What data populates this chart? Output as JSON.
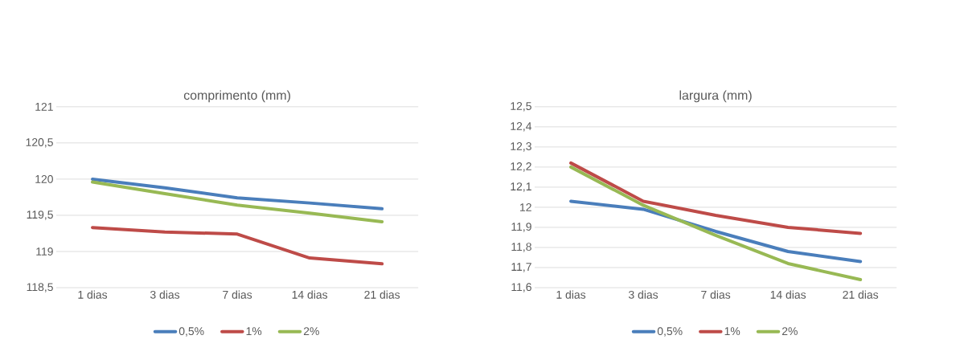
{
  "chart_data": [
    {
      "type": "line",
      "title": "comprimento (mm)",
      "categories": [
        "1 dias",
        "3 dias",
        "7 dias",
        "14 dias",
        "21 dias"
      ],
      "series": [
        {
          "name": "0,5%",
          "color": "#4a7ebb",
          "values": [
            120.0,
            119.88,
            119.74,
            119.67,
            119.59
          ]
        },
        {
          "name": "1%",
          "color": "#be4b48",
          "values": [
            119.33,
            119.27,
            119.24,
            118.91,
            118.83
          ]
        },
        {
          "name": "2%",
          "color": "#98b954",
          "values": [
            119.96,
            119.8,
            119.64,
            119.53,
            119.41
          ]
        }
      ],
      "ylim": [
        118.5,
        121
      ],
      "yticks": [
        {
          "value": 118.5,
          "label": "118,5"
        },
        119,
        {
          "value": 119.5,
          "label": "119,5"
        },
        120,
        {
          "value": 120.5,
          "label": "120,5"
        },
        121
      ],
      "grid": "y",
      "legend": "bottom",
      "marker": "none",
      "line_style": "solid"
    },
    {
      "type": "line",
      "title": "largura (mm)",
      "categories": [
        "1 dias",
        "3 dias",
        "7 dias",
        "14 dias",
        "21 dias"
      ],
      "series": [
        {
          "name": "0,5%",
          "color": "#4a7ebb",
          "values": [
            12.03,
            11.99,
            11.88,
            11.78,
            11.73
          ]
        },
        {
          "name": "1%",
          "color": "#be4b48",
          "values": [
            12.22,
            12.03,
            11.96,
            11.9,
            11.87
          ]
        },
        {
          "name": "2%",
          "color": "#98b954",
          "values": [
            12.2,
            12.01,
            11.86,
            11.72,
            11.64
          ]
        }
      ],
      "ylim": [
        11.6,
        12.5
      ],
      "yticks": [
        {
          "value": 11.6,
          "label": "11,6"
        },
        {
          "value": 11.7,
          "label": "11,7"
        },
        {
          "value": 11.8,
          "label": "11,8"
        },
        {
          "value": 11.9,
          "label": "11,9"
        },
        12,
        {
          "value": 12.1,
          "label": "12,1"
        },
        {
          "value": 12.2,
          "label": "12,2"
        },
        {
          "value": 12.3,
          "label": "12,3"
        },
        {
          "value": 12.4,
          "label": "12,4"
        },
        {
          "value": 12.5,
          "label": "12,5"
        }
      ],
      "grid": "y",
      "legend": "bottom",
      "marker": "none",
      "line_style": "solid"
    }
  ]
}
